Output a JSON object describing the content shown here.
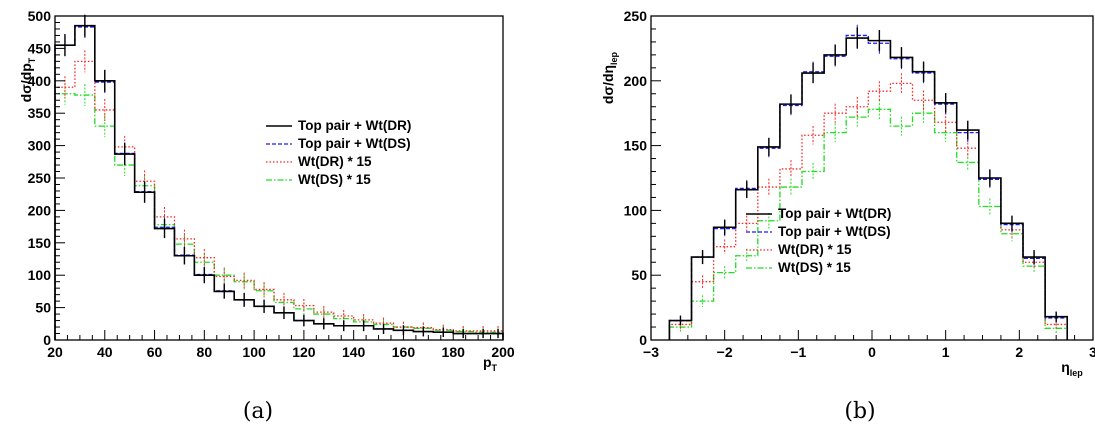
{
  "colors": {
    "series_solid": "#000000",
    "series_blue": "#1a1aff",
    "series_red": "#ff2020",
    "series_green": "#22dd22",
    "axis": "#000000"
  },
  "chart_data": [
    {
      "type": "line",
      "caption": "(a)",
      "ylabel": "dσ/dp",
      "ylabel_sub": "T",
      "xlabel": "p",
      "xlabel_sub": "T",
      "xlim": [
        20,
        200
      ],
      "ylim": [
        0,
        500
      ],
      "x_ticks": [
        "20",
        "40",
        "60",
        "80",
        "100",
        "120",
        "140",
        "160",
        "180",
        "200"
      ],
      "y_ticks": [
        "0",
        "50",
        "100",
        "150",
        "200",
        "250",
        "300",
        "350",
        "400",
        "450",
        "500"
      ],
      "grid": false,
      "legend_position": "center-right",
      "series": [
        {
          "name": "Top pair + Wt(DR)",
          "style": "solid",
          "bin_edges": [
            20,
            28,
            36,
            44,
            52,
            60,
            68,
            76,
            84,
            92,
            100,
            108,
            116,
            124,
            132,
            140,
            148,
            156,
            164,
            172,
            180,
            188,
            196,
            200
          ],
          "values": [
            455,
            485,
            400,
            287,
            228,
            172,
            130,
            100,
            75,
            62,
            52,
            42,
            30,
            25,
            22,
            22,
            17,
            15,
            13,
            12,
            10,
            10,
            10
          ]
        },
        {
          "name": "Top pair + Wt(DS)",
          "style": "dashed",
          "bin_edges": [
            20,
            28,
            36,
            44,
            52,
            60,
            68,
            76,
            84,
            92,
            100,
            108,
            116,
            124,
            132,
            140,
            148,
            156,
            164,
            172,
            180,
            188,
            196,
            200
          ],
          "values": [
            455,
            483,
            398,
            288,
            229,
            174,
            131,
            101,
            76,
            62,
            52,
            42,
            30,
            25,
            22,
            22,
            17,
            15,
            13,
            12,
            10,
            10,
            10
          ]
        },
        {
          "name": "Wt(DR) * 15",
          "style": "dotted",
          "bin_edges": [
            20,
            28,
            36,
            44,
            52,
            60,
            68,
            76,
            84,
            92,
            100,
            108,
            116,
            124,
            132,
            140,
            148,
            156,
            164,
            172,
            180,
            188,
            196,
            200
          ],
          "values": [
            390,
            430,
            355,
            298,
            245,
            190,
            156,
            127,
            98,
            92,
            78,
            62,
            53,
            43,
            37,
            31,
            26,
            20,
            19,
            16,
            14,
            14,
            14
          ]
        },
        {
          "name": "Wt(DS) * 15",
          "style": "dashdot",
          "bin_edges": [
            20,
            28,
            36,
            44,
            52,
            60,
            68,
            76,
            84,
            92,
            100,
            108,
            116,
            124,
            132,
            140,
            148,
            156,
            164,
            172,
            180,
            188,
            196,
            200
          ],
          "values": [
            380,
            378,
            330,
            270,
            238,
            178,
            148,
            120,
            100,
            90,
            76,
            58,
            48,
            40,
            33,
            28,
            24,
            20,
            18,
            15,
            13,
            12,
            12
          ]
        }
      ]
    },
    {
      "type": "line",
      "caption": "(b)",
      "ylabel": "dσ/dη",
      "ylabel_sub": "lep",
      "xlabel": "η",
      "xlabel_sub": "lep",
      "xlim": [
        -3,
        3
      ],
      "ylim": [
        0,
        250
      ],
      "x_ticks": [
        "−3",
        "−2",
        "−1",
        "0",
        "1",
        "2",
        "3"
      ],
      "y_ticks": [
        "0",
        "50",
        "100",
        "150",
        "200",
        "250"
      ],
      "grid": false,
      "legend_position": "center",
      "series": [
        {
          "name": "Top pair + Wt(DR)",
          "style": "solid",
          "bin_edges": [
            -2.75,
            -2.45,
            -2.15,
            -1.85,
            -1.55,
            -1.25,
            -0.95,
            -0.65,
            -0.35,
            -0.05,
            0.25,
            0.55,
            0.85,
            1.15,
            1.45,
            1.75,
            2.05,
            2.35,
            2.65
          ],
          "values": [
            15,
            64,
            87,
            116,
            149,
            182,
            206,
            220,
            233,
            231,
            218,
            207,
            183,
            162,
            125,
            90,
            64,
            18
          ]
        },
        {
          "name": "Top pair + Wt(DS)",
          "style": "dashed",
          "bin_edges": [
            -2.75,
            -2.45,
            -2.15,
            -1.85,
            -1.55,
            -1.25,
            -0.95,
            -0.65,
            -0.35,
            -0.05,
            0.25,
            0.55,
            0.85,
            1.15,
            1.45,
            1.75,
            2.05,
            2.35,
            2.65
          ],
          "values": [
            15,
            64,
            86,
            117,
            148,
            181,
            207,
            219,
            235,
            229,
            217,
            206,
            182,
            160,
            124,
            89,
            63,
            17
          ]
        },
        {
          "name": "Wt(DR) * 15",
          "style": "dotted",
          "bin_edges": [
            -2.75,
            -2.45,
            -2.15,
            -1.85,
            -1.55,
            -1.25,
            -0.95,
            -0.65,
            -0.35,
            -0.05,
            0.25,
            0.55,
            0.85,
            1.15,
            1.45,
            1.75,
            2.05,
            2.35,
            2.65
          ],
          "values": [
            12,
            45,
            72,
            90,
            118,
            132,
            158,
            175,
            180,
            192,
            198,
            185,
            168,
            148,
            125,
            85,
            60,
            12
          ]
        },
        {
          "name": "Wt(DS) * 15",
          "style": "dashdot",
          "bin_edges": [
            -2.75,
            -2.45,
            -2.15,
            -1.85,
            -1.55,
            -1.25,
            -0.95,
            -0.65,
            -0.35,
            -0.05,
            0.25,
            0.55,
            0.85,
            1.15,
            1.45,
            1.75,
            2.05,
            2.35,
            2.65
          ],
          "values": [
            10,
            30,
            52,
            65,
            92,
            118,
            130,
            160,
            172,
            178,
            165,
            175,
            160,
            137,
            103,
            82,
            57,
            9
          ]
        }
      ]
    }
  ]
}
